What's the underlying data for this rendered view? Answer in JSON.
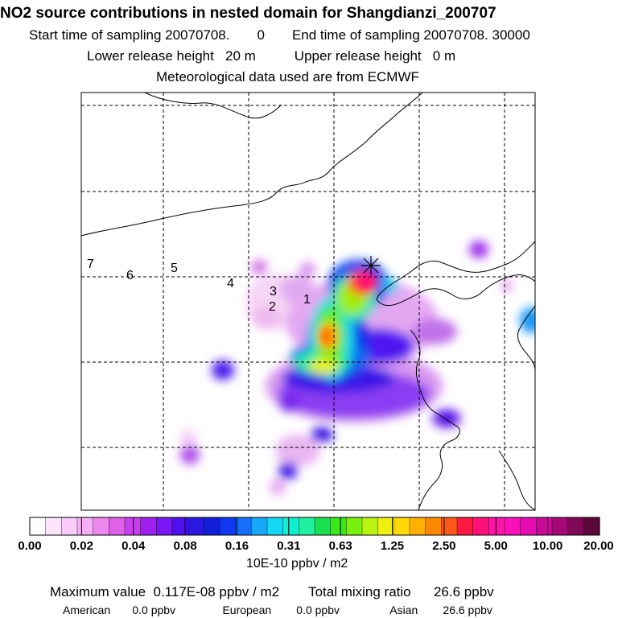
{
  "header": {
    "title": "NO2 source contributions in nested domain for Shangdianzi_200707",
    "start_label": "Start time of sampling 20070708.",
    "start_value": "0",
    "end_label": "End time of sampling 20070708. 30000",
    "lower_label": "Lower release height",
    "lower_value": "20 m",
    "upper_label": "Upper release height",
    "upper_value": "0 m",
    "met": "Meteorological data used are from ECMWF"
  },
  "map": {
    "station_marker": "asterisk-station-icon",
    "trajectory_labels": [
      "1",
      "2",
      "3",
      "4",
      "5",
      "6",
      "7"
    ]
  },
  "colorbar": {
    "tick_labels": [
      "0.00",
      "0.02",
      "0.04",
      "0.08",
      "0.16",
      "0.31",
      "0.63",
      "1.25",
      "2.50",
      "5.00",
      "10.00",
      "20.00"
    ],
    "units": "10E-10 ppbv / m2",
    "colors": [
      "#ffffff",
      "#fde6fd",
      "#f9ccf9",
      "#f4b0f4",
      "#ee88ee",
      "#e060e8",
      "#c840ee",
      "#a020f0",
      "#7a18f4",
      "#5010f0",
      "#2818e0",
      "#1020d8",
      "#1038f0",
      "#1470f8",
      "#18a8f8",
      "#12d8f4",
      "#10f0d0",
      "#20f0a0",
      "#18e050",
      "#38e818",
      "#78f010",
      "#b8f410",
      "#eef010",
      "#ffd808",
      "#ffb000",
      "#ff8800",
      "#ff5818",
      "#ff1840",
      "#ff1078",
      "#ff14a8",
      "#f810b8",
      "#e40cb0",
      "#c80a98",
      "#a60878",
      "#800858",
      "#5a0838"
    ]
  },
  "footer": {
    "max_label": "Maximum value",
    "max_value": "0.117E-08 ppbv / m2",
    "total_label": "Total mixing ratio",
    "total_value": "26.6 ppbv",
    "american_label": "American",
    "american_value": "0.0 ppbv",
    "european_label": "European",
    "european_value": "0.0 ppbv",
    "asian_label": "Asian",
    "asian_value": "26.6 ppbv"
  }
}
